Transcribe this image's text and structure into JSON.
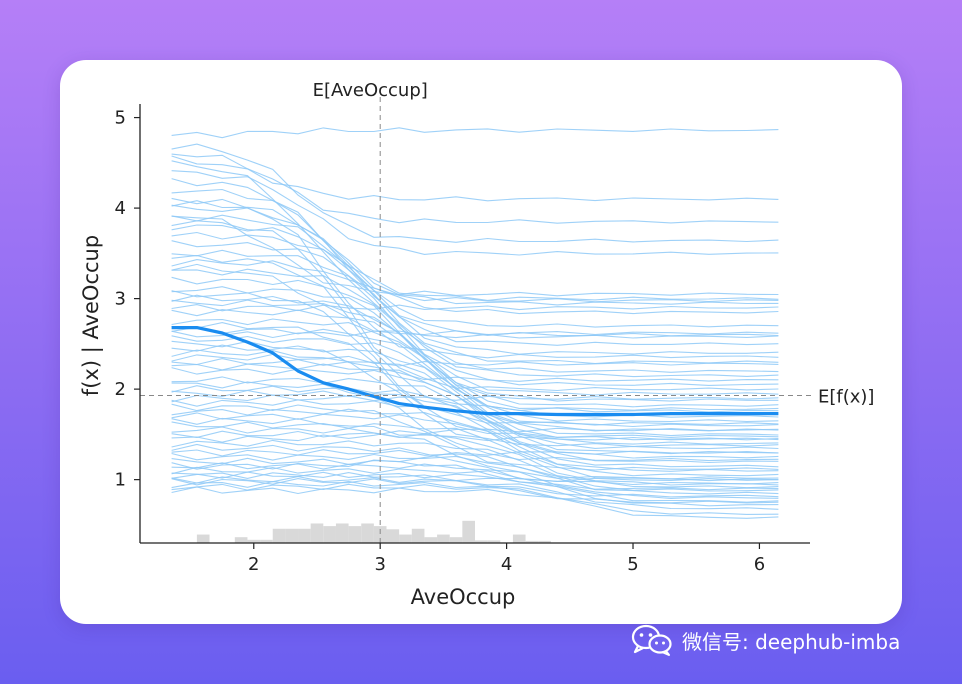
{
  "chart_data": {
    "type": "line",
    "xlabel": "AveOccup",
    "ylabel": "f(x) | AveOccup",
    "xlim": [
      1.1,
      6.4
    ],
    "ylim": [
      0.3,
      5.15
    ],
    "x_ticks": [
      2,
      3,
      4,
      5,
      6
    ],
    "y_ticks": [
      1,
      2,
      3,
      4,
      5
    ],
    "expected_feature_label": "E[AveOccup]",
    "expected_feature_value": 3.0,
    "expected_output_label": "E[f(x)]",
    "expected_output_value": 1.93,
    "ice_color": "#8ec9f7",
    "pd_color": "#1a8cf0",
    "hist_color": "#d9d9d9",
    "x": [
      1.35,
      1.55,
      1.75,
      1.95,
      2.15,
      2.35,
      2.55,
      2.75,
      2.95,
      3.15,
      3.35,
      3.6,
      3.85,
      4.1,
      4.4,
      4.7,
      5.0,
      5.3,
      5.6,
      5.9,
      6.15
    ],
    "series": [
      {
        "values": [
          2.68,
          2.68,
          2.62,
          2.52,
          2.4,
          2.2,
          2.07,
          2.0,
          1.92,
          1.84,
          1.8,
          1.76,
          1.73,
          1.73,
          1.72,
          1.72,
          1.72,
          1.73,
          1.73,
          1.73,
          1.73
        ]
      }
    ],
    "ice_params": [
      [
        4.8,
        0.0,
        4.86
      ],
      [
        4.55,
        0.12,
        4.1
      ],
      [
        4.62,
        0.25,
        3.85
      ],
      [
        4.7,
        0.35,
        3.64
      ],
      [
        4.4,
        0.45,
        3.5
      ],
      [
        4.3,
        0.55,
        3.0
      ],
      [
        4.2,
        0.62,
        2.95
      ],
      [
        4.05,
        0.7,
        2.85
      ],
      [
        4.0,
        0.75,
        2.7
      ],
      [
        3.9,
        0.82,
        2.6
      ],
      [
        3.8,
        0.88,
        2.5
      ],
      [
        3.7,
        0.95,
        2.4
      ],
      [
        3.6,
        1.0,
        2.3
      ],
      [
        3.5,
        1.05,
        2.2
      ],
      [
        3.4,
        1.1,
        2.15
      ],
      [
        3.3,
        1.15,
        2.05
      ],
      [
        3.2,
        1.2,
        1.95
      ],
      [
        3.1,
        1.25,
        1.88
      ],
      [
        3.0,
        1.3,
        1.82
      ],
      [
        2.95,
        1.35,
        1.76
      ],
      [
        2.85,
        1.4,
        1.7
      ],
      [
        2.75,
        1.45,
        1.65
      ],
      [
        2.65,
        1.5,
        1.6
      ],
      [
        2.55,
        1.55,
        1.55
      ],
      [
        2.45,
        1.6,
        1.5
      ],
      [
        2.35,
        1.65,
        1.45
      ],
      [
        2.25,
        1.7,
        1.4
      ],
      [
        2.2,
        1.75,
        1.35
      ],
      [
        2.1,
        1.8,
        1.3
      ],
      [
        2.0,
        1.85,
        1.25
      ],
      [
        1.95,
        1.9,
        1.2
      ],
      [
        1.85,
        1.95,
        1.15
      ],
      [
        1.75,
        2.0,
        1.1
      ],
      [
        1.7,
        2.05,
        1.05
      ],
      [
        1.6,
        2.1,
        1.0
      ],
      [
        1.5,
        2.15,
        0.95
      ],
      [
        1.4,
        2.2,
        0.92
      ],
      [
        1.3,
        2.25,
        0.88
      ],
      [
        1.25,
        2.3,
        0.85
      ],
      [
        1.15,
        2.35,
        0.8
      ],
      [
        1.1,
        2.4,
        0.76
      ],
      [
        1.05,
        2.45,
        0.72
      ],
      [
        0.98,
        2.5,
        0.68
      ],
      [
        0.92,
        2.55,
        0.62
      ],
      [
        0.88,
        2.6,
        0.58
      ],
      [
        4.5,
        0.4,
        2.98
      ],
      [
        4.1,
        0.6,
        2.36
      ],
      [
        3.85,
        0.72,
        2.0
      ],
      [
        3.45,
        0.85,
        1.78
      ],
      [
        3.05,
        0.95,
        1.62
      ],
      [
        2.7,
        1.1,
        1.48
      ],
      [
        2.4,
        1.2,
        1.38
      ],
      [
        2.05,
        1.3,
        1.22
      ],
      [
        1.8,
        1.45,
        1.12
      ],
      [
        1.55,
        1.6,
        1.02
      ],
      [
        1.35,
        1.75,
        0.96
      ],
      [
        1.2,
        1.9,
        0.9
      ],
      [
        1.0,
        2.05,
        0.82
      ],
      [
        0.95,
        2.2,
        0.75
      ],
      [
        2.9,
        0.3,
        2.9
      ],
      [
        2.6,
        0.5,
        2.62
      ],
      [
        2.3,
        0.7,
        2.28
      ],
      [
        1.9,
        0.9,
        1.9
      ],
      [
        1.45,
        1.0,
        1.55
      ],
      [
        1.15,
        1.2,
        1.3
      ],
      [
        3.95,
        0.2,
        3.05
      ],
      [
        3.35,
        0.5,
        2.58
      ],
      [
        2.5,
        0.8,
        2.1
      ],
      [
        1.65,
        1.0,
        1.45
      ],
      [
        1.05,
        1.4,
        1.0
      ]
    ],
    "histogram": {
      "bin_edges": [
        1.55,
        1.65,
        1.75,
        1.85,
        1.95,
        2.05,
        2.15,
        2.25,
        2.35,
        2.45,
        2.55,
        2.65,
        2.75,
        2.85,
        2.95,
        3.05,
        3.15,
        3.25,
        3.35,
        3.45,
        3.55,
        3.65,
        3.75,
        3.85,
        3.95,
        4.05,
        4.15,
        4.25,
        4.35
      ],
      "counts": [
        0.16,
        0.0,
        0.0,
        0.11,
        0.06,
        0.06,
        0.27,
        0.27,
        0.27,
        0.37,
        0.32,
        0.37,
        0.32,
        0.37,
        0.32,
        0.26,
        0.16,
        0.27,
        0.11,
        0.16,
        0.11,
        0.42,
        0.05,
        0.05,
        0.0,
        0.16,
        0.04,
        0.04
      ],
      "scale_max": 0.72
    }
  },
  "watermark": {
    "text": "微信号: deephub-imba",
    "icon": "wechat-icon"
  }
}
